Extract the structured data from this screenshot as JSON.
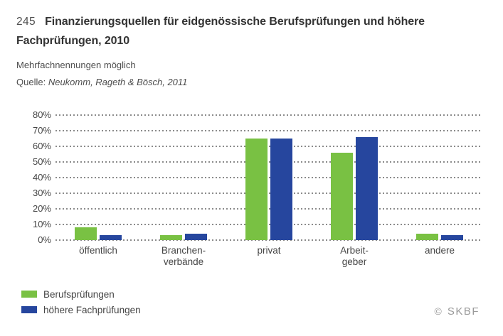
{
  "header": {
    "figure_number": "245",
    "title_line1": "Finanzierungsquellen für eidgenössische Berufsprüfungen und höhere",
    "title_line2": "Fachprüfungen, 2010",
    "subtitle": "Mehrfachnennungen möglich",
    "source_label": "Quelle:",
    "source_value": "Neukomm, Rageth & Bösch, 2011"
  },
  "chart_data": {
    "type": "bar",
    "title": "Finanzierungsquellen für eidgenössische Berufsprüfungen und höhere Fachprüfungen, 2010",
    "note": "Mehrfachnennungen möglich",
    "source": "Quelle: Neukomm, Rageth & Bösch, 2011",
    "categories": [
      "öffentlich",
      "Branchenverbände",
      "privat",
      "Arbeitgeber",
      "andere"
    ],
    "category_label_lines": [
      [
        "öffentlich"
      ],
      [
        "Branchen-",
        "verbände"
      ],
      [
        "privat"
      ],
      [
        "Arbeit-",
        "geber"
      ],
      [
        "andere"
      ]
    ],
    "series": [
      {
        "name": "Berufsprüfungen",
        "color": "#79C143",
        "values": [
          8,
          3,
          65,
          56,
          4
        ]
      },
      {
        "name": "höhere Fachprüfungen",
        "color": "#26469E",
        "values": [
          3,
          4,
          65,
          66,
          3
        ]
      }
    ],
    "unit": "%",
    "ylim": [
      0,
      80
    ],
    "y_tick_step": 10,
    "y_tick_labels": [
      "0%",
      "10%",
      "20%",
      "30%",
      "40%",
      "50%",
      "60%",
      "70%",
      "80%"
    ],
    "grid": "dotted horizontal gridlines",
    "legend_position": "bottom-left"
  },
  "footer": {
    "copyright_symbol": "©",
    "copyright_name": "SKBF"
  },
  "colors": {
    "bar_green": "#79C143",
    "bar_blue": "#26469E",
    "gridline_gray": "#8B8B8B",
    "text_dark": "#333333",
    "text_gray": "#4E4E4E",
    "copyright_gray": "#9A9A9A"
  }
}
